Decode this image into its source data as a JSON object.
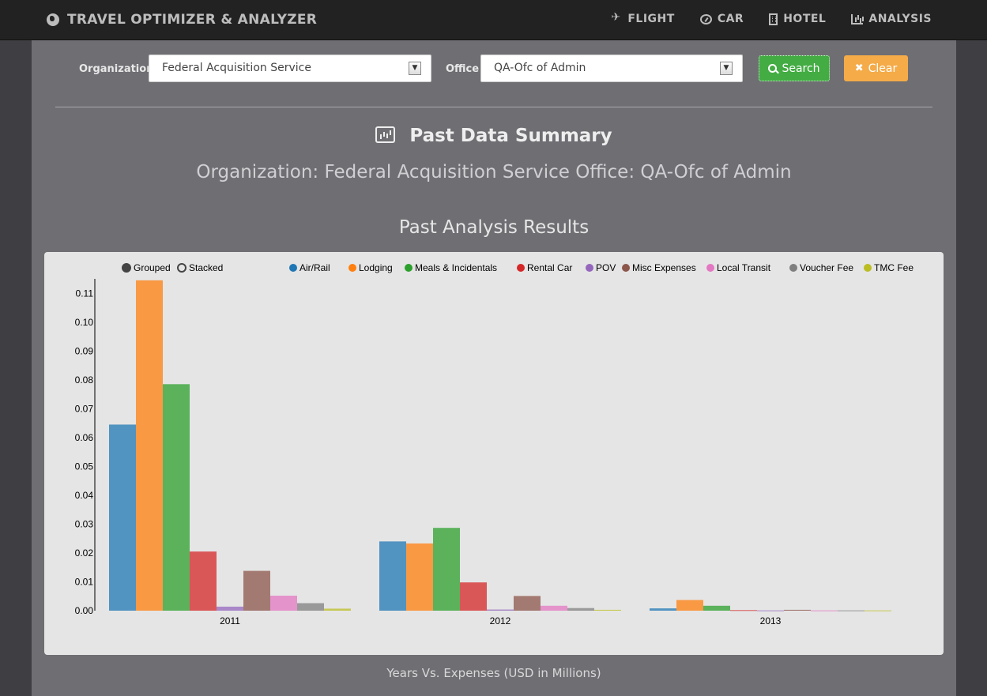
{
  "navbar": {
    "brand": "TRAVEL OPTIMIZER & ANALYZER",
    "brand_icon": "globe-icon",
    "items": [
      {
        "label": "FLIGHT",
        "icon": "plane-icon"
      },
      {
        "label": "CAR",
        "icon": "gauge-icon"
      },
      {
        "label": "HOTEL",
        "icon": "building-icon"
      },
      {
        "label": "ANALYSIS",
        "icon": "bar-chart-icon"
      }
    ]
  },
  "filters": {
    "organization_label": "Organization",
    "organization_value": "Federal Acquisition Service",
    "office_label": "Office",
    "office_value": "QA-Ofc of Admin",
    "search_label": "Search",
    "clear_label": "Clear"
  },
  "summary": {
    "title": "Past Data Summary",
    "subtitle": "Organization: Federal Acquisition Service Office: QA-Ofc of Admin"
  },
  "results": {
    "title": "Past Analysis Results",
    "caption": "Years Vs. Expenses (USD in Millions)"
  },
  "colors": {
    "navbar_bg": "#222222",
    "search_button": "#43ac43",
    "clear_button": "#f4ab48"
  },
  "chart_data": {
    "type": "bar",
    "mode_controls": [
      {
        "label": "Grouped",
        "selected": true
      },
      {
        "label": "Stacked",
        "selected": false
      }
    ],
    "legend_position": "top",
    "categories": [
      "2011",
      "2012",
      "2013"
    ],
    "ylim": [
      0,
      0.115
    ],
    "yticks": [
      "0.00",
      "0.01",
      "0.02",
      "0.03",
      "0.04",
      "0.05",
      "0.06",
      "0.07",
      "0.08",
      "0.09",
      "0.10",
      "0.11"
    ],
    "series": [
      {
        "name": "Air/Rail",
        "color": "#1f77b4",
        "values": [
          0.0645,
          0.024,
          0.0008
        ]
      },
      {
        "name": "Lodging",
        "color": "#ff7f0e",
        "values": [
          0.1145,
          0.0233,
          0.0037
        ]
      },
      {
        "name": "Meals & Incidentals",
        "color": "#2ca02c",
        "values": [
          0.0785,
          0.0287,
          0.0017
        ]
      },
      {
        "name": "Rental Car",
        "color": "#d62728",
        "values": [
          0.0205,
          0.0098,
          0.0002
        ]
      },
      {
        "name": "POV",
        "color": "#9467bd",
        "values": [
          0.0014,
          0.0004,
          0.0001
        ]
      },
      {
        "name": "Misc Expenses",
        "color": "#8c564b",
        "values": [
          0.0138,
          0.0051,
          0.0003
        ]
      },
      {
        "name": "Local Transit",
        "color": "#e377c2",
        "values": [
          0.0052,
          0.0017,
          0.0001
        ]
      },
      {
        "name": "Voucher Fee",
        "color": "#7f7f7f",
        "values": [
          0.0026,
          0.0009,
          0.0001
        ]
      },
      {
        "name": "TMC Fee",
        "color": "#bcbd22",
        "values": [
          0.0007,
          0.0003,
          0.0001
        ]
      }
    ]
  }
}
